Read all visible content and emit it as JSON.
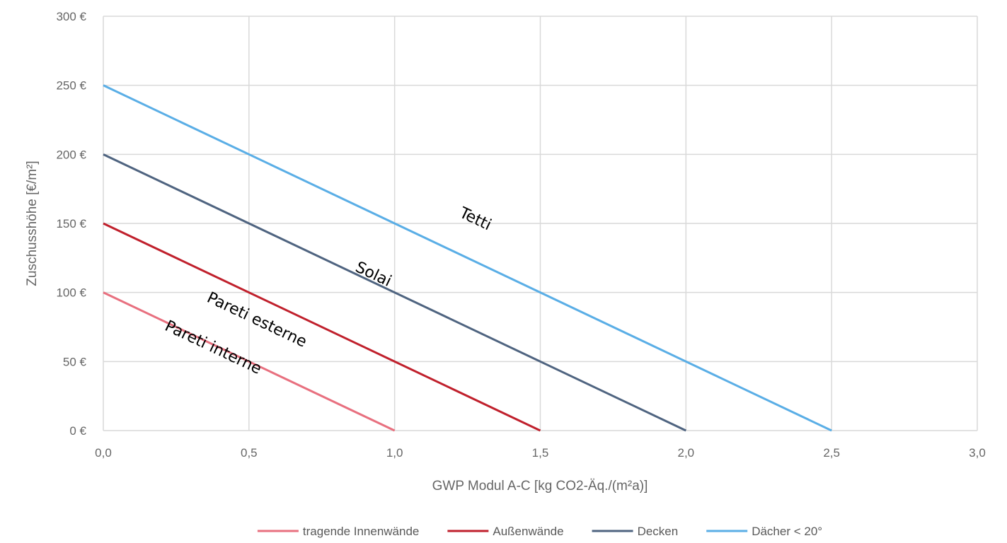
{
  "chart_data": {
    "type": "line",
    "xlabel": "GWP Modul A-C [kg CO2-Äq./(m²a)]",
    "ylabel": "Zuschusshöhe [€/m²]",
    "xlim": [
      0,
      3
    ],
    "ylim": [
      0,
      300
    ],
    "x_ticks": [
      "0,0",
      "0,5",
      "1,0",
      "1,5",
      "2,0",
      "2,5",
      "3,0"
    ],
    "y_ticks": [
      "0 €",
      "50 €",
      "100 €",
      "150 €",
      "200 €",
      "250 €",
      "300 €"
    ],
    "grid": true,
    "legend_position": "bottom",
    "series": [
      {
        "name": "tragende Innenwände",
        "color": "#e8707f",
        "x": [
          0,
          1.0
        ],
        "y": [
          100,
          0
        ]
      },
      {
        "name": "Außenwände",
        "color": "#c0202c",
        "x": [
          0,
          1.5
        ],
        "y": [
          150,
          0
        ]
      },
      {
        "name": "Decken",
        "color": "#4f6480",
        "x": [
          0,
          2.0
        ],
        "y": [
          200,
          0
        ]
      },
      {
        "name": "Dächer < 20°",
        "color": "#5aaee6",
        "x": [
          0,
          2.5
        ],
        "y": [
          250,
          0
        ]
      }
    ],
    "annotations": [
      {
        "text": "Tetti",
        "x": 1.27,
        "y": 150
      },
      {
        "text": "Solai",
        "x": 0.92,
        "y": 110
      },
      {
        "text": "Pareti esterne",
        "x": 0.52,
        "y": 77
      },
      {
        "text": "Pareti interne",
        "x": 0.37,
        "y": 57
      }
    ]
  }
}
